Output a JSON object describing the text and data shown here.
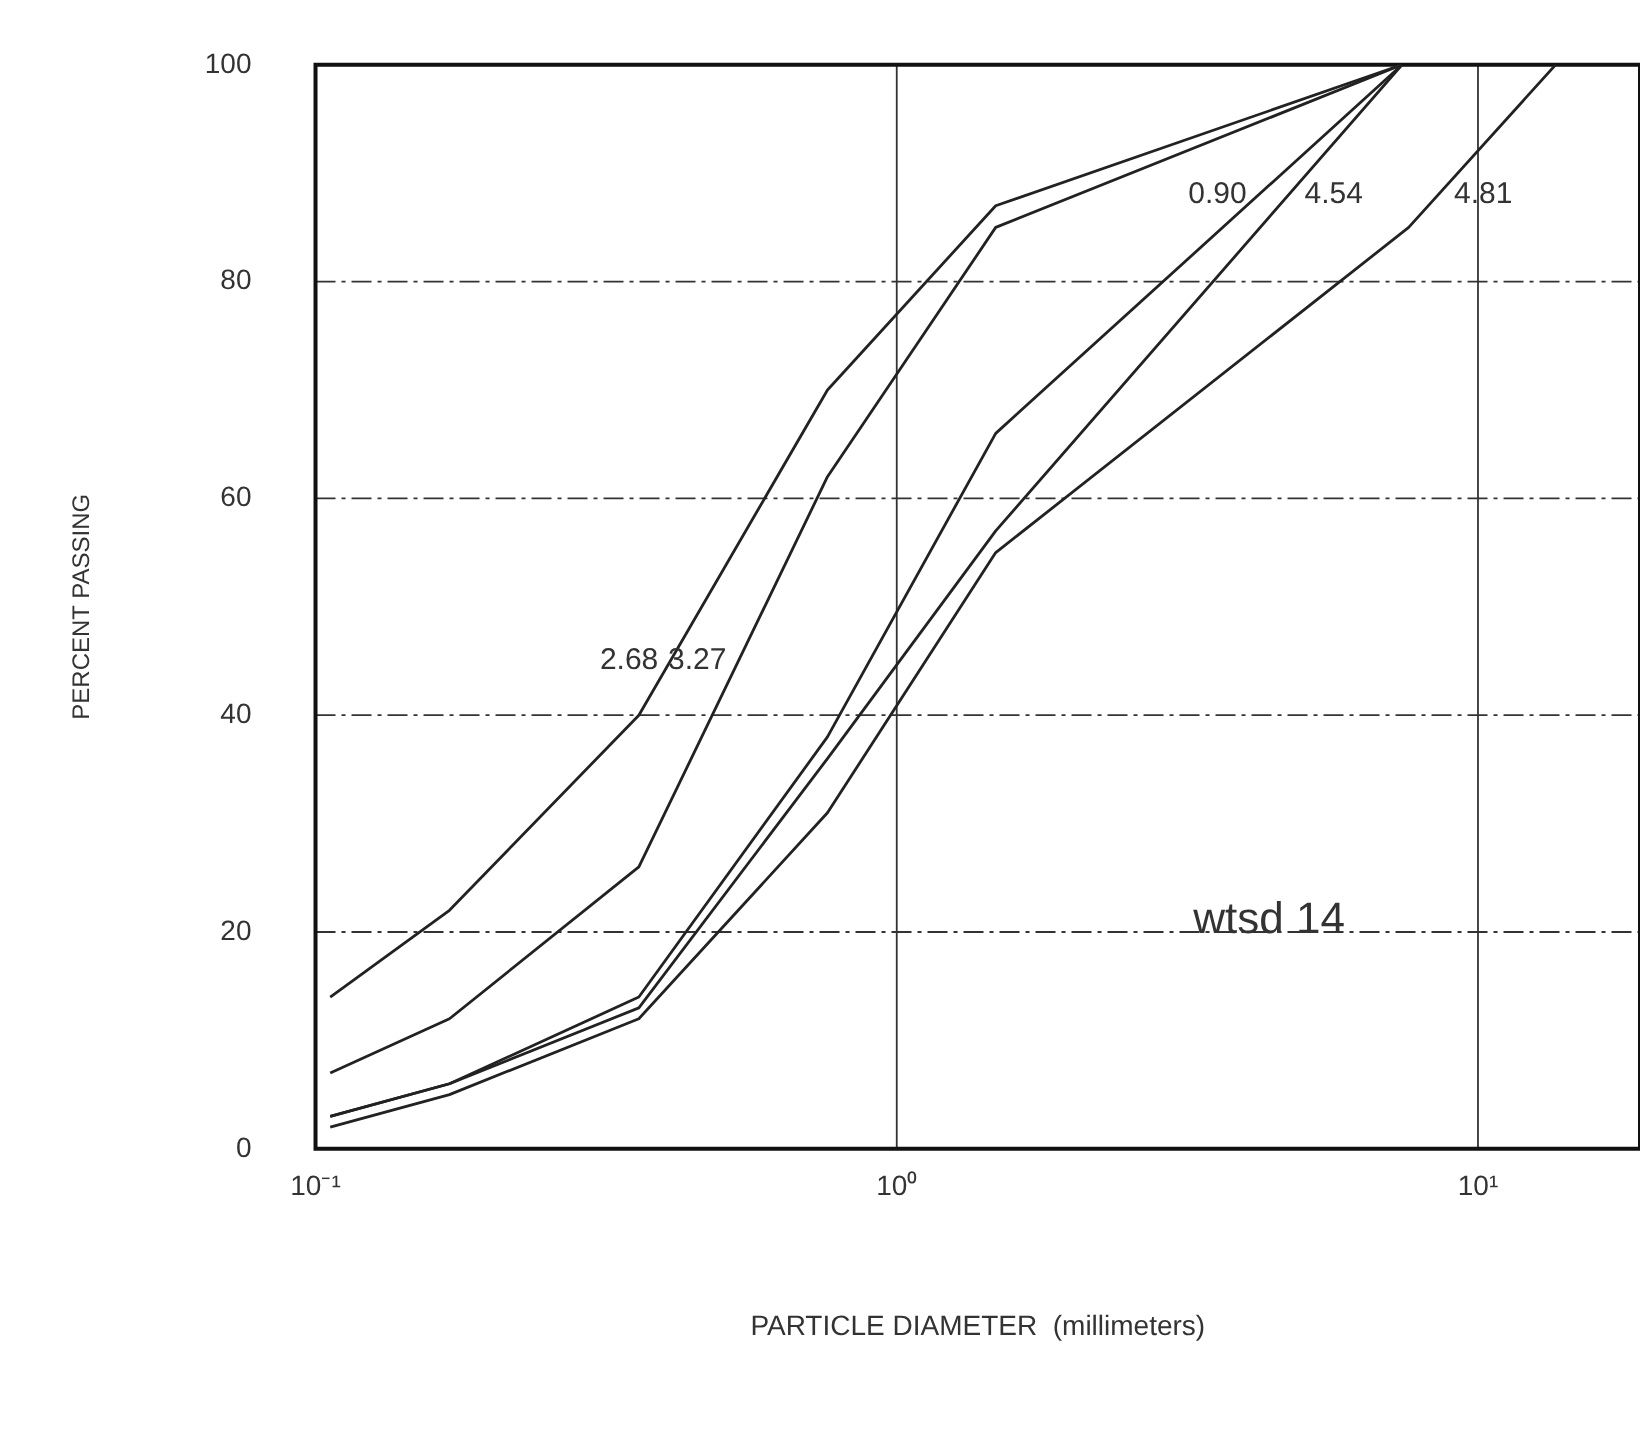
{
  "chart_data": {
    "type": "line",
    "xlabel": "PARTICLE DIAMETER  (millimeters)",
    "ylabel": "PERCENT PASSING",
    "log": "x",
    "xlim": [
      0.1,
      19
    ],
    "ylim": [
      0,
      100
    ],
    "xticks": [
      {
        "value": 0.1,
        "label": "10⁻¹"
      },
      {
        "value": 1,
        "label": "10⁰"
      },
      {
        "value": 10,
        "label": "10¹"
      }
    ],
    "yticks": [
      0,
      20,
      40,
      60,
      80,
      100
    ],
    "grid": true,
    "legend": false,
    "marker": "none",
    "line_style": "solid",
    "x": [
      0.106,
      0.17,
      0.36,
      0.76,
      1.48,
      7.4
    ],
    "series": [
      {
        "name": "2.68",
        "color": "#222222",
        "values": [
          14,
          22,
          40,
          70,
          87,
          100
        ]
      },
      {
        "name": "3.27",
        "color": "#222222",
        "values": [
          7,
          12,
          26,
          62,
          85,
          100
        ]
      },
      {
        "name": "0.90",
        "color": "#222222",
        "values": [
          3,
          6,
          14,
          38,
          66,
          100
        ]
      },
      {
        "name": "4.54",
        "color": "#222222",
        "values": [
          3,
          6,
          13,
          36,
          57,
          100
        ]
      },
      {
        "name": "4.81",
        "color": "#222222",
        "x": [
          0.106,
          0.17,
          0.36,
          0.76,
          1.48,
          7.6,
          13.6
        ],
        "values": [
          2,
          5,
          12,
          31,
          55,
          85,
          100
        ]
      }
    ],
    "annotations": [
      "wtsd 14"
    ]
  }
}
